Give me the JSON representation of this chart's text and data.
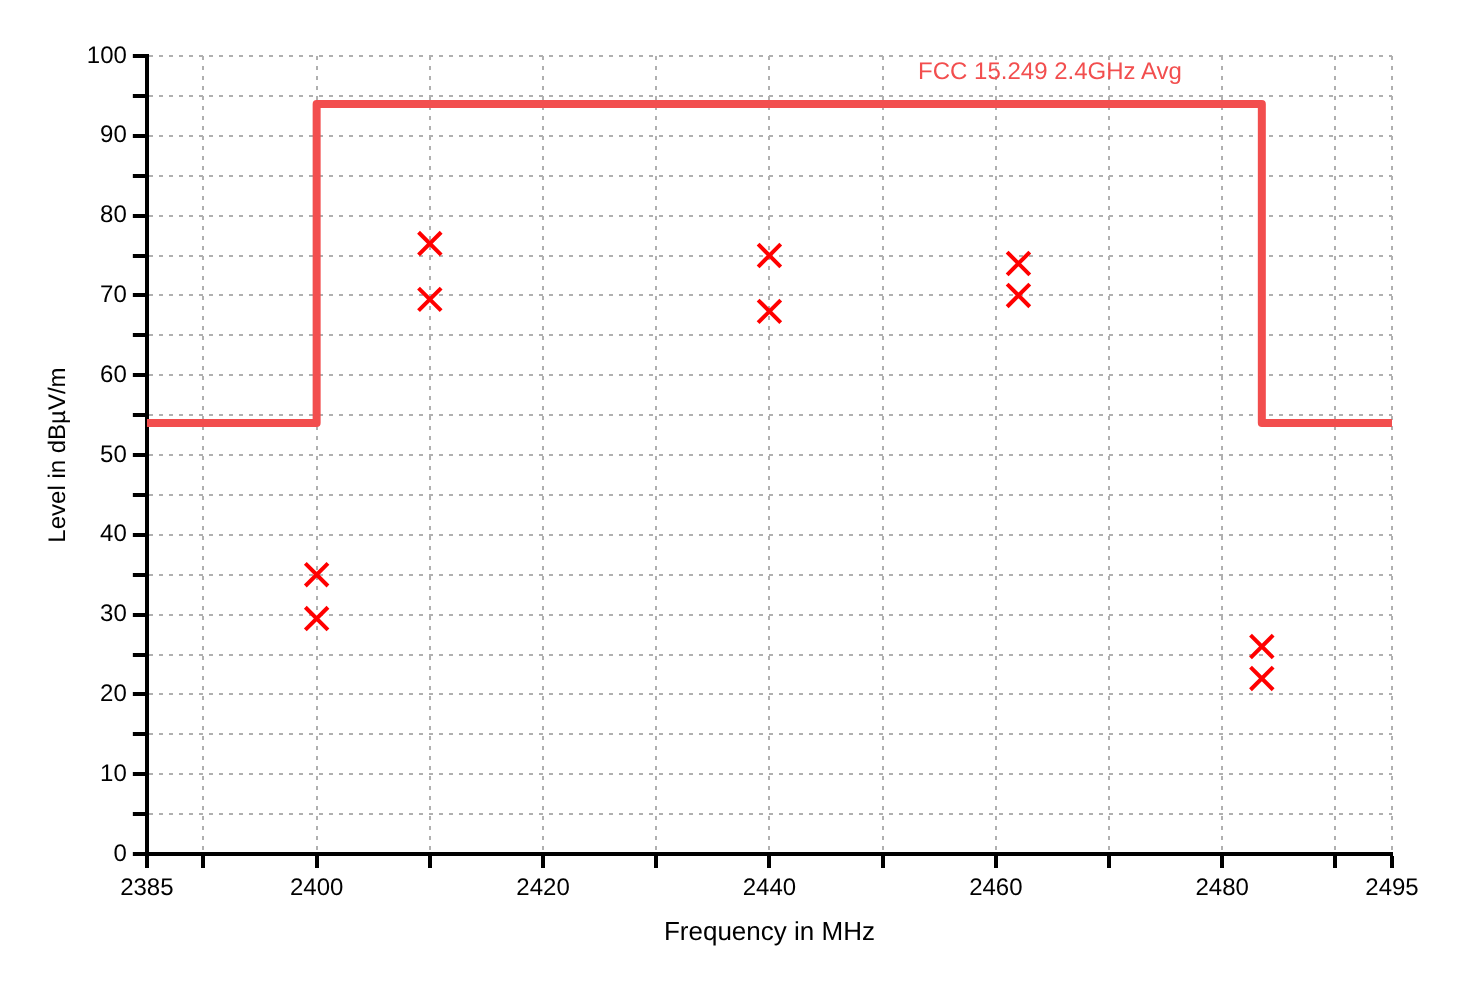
{
  "chart_data": {
    "type": "scatter",
    "xlabel": "Frequency in MHz",
    "ylabel": "Level in dBµV/m",
    "xlim": [
      2385,
      2495
    ],
    "xticks": [
      2385,
      {
        "value": 2390,
        "label": null
      },
      2400,
      {
        "value": 2410,
        "label": null
      },
      2420,
      {
        "value": 2430,
        "label": null
      },
      2440,
      {
        "value": 2450,
        "label": null
      },
      2460,
      {
        "value": 2470,
        "label": null
      },
      2480,
      {
        "value": 2490,
        "label": null
      },
      2495
    ],
    "ylim": [
      0,
      100
    ],
    "yticks": [
      0,
      {
        "value": 5,
        "label": null
      },
      10,
      {
        "value": 15,
        "label": null
      },
      20,
      {
        "value": 25,
        "label": null
      },
      30,
      {
        "value": 35,
        "label": null
      },
      40,
      {
        "value": 45,
        "label": null
      },
      50,
      {
        "value": 55,
        "label": null
      },
      60,
      {
        "value": 65,
        "label": null
      },
      70,
      {
        "value": 75,
        "label": null
      },
      80,
      {
        "value": 85,
        "label": null
      },
      90,
      {
        "value": 95,
        "label": null
      },
      100
    ],
    "grid": true,
    "legend": false,
    "series": [
      {
        "name": "FCC 15.249 2.4GHz Avg",
        "type": "step",
        "marker": "none",
        "color": "#f24e4e",
        "x": [
          2385,
          2400,
          2483.5,
          2495
        ],
        "values": [
          54,
          94,
          54,
          54
        ]
      },
      {
        "marker": "cross",
        "color": "#ff0000",
        "x": [
          2400,
          2400,
          2410,
          2410,
          2440,
          2440,
          2462,
          2462,
          2483.5,
          2483.5
        ],
        "values": [
          35,
          29.5,
          76.5,
          69.5,
          75,
          68,
          74,
          70,
          26,
          22
        ]
      }
    ]
  }
}
